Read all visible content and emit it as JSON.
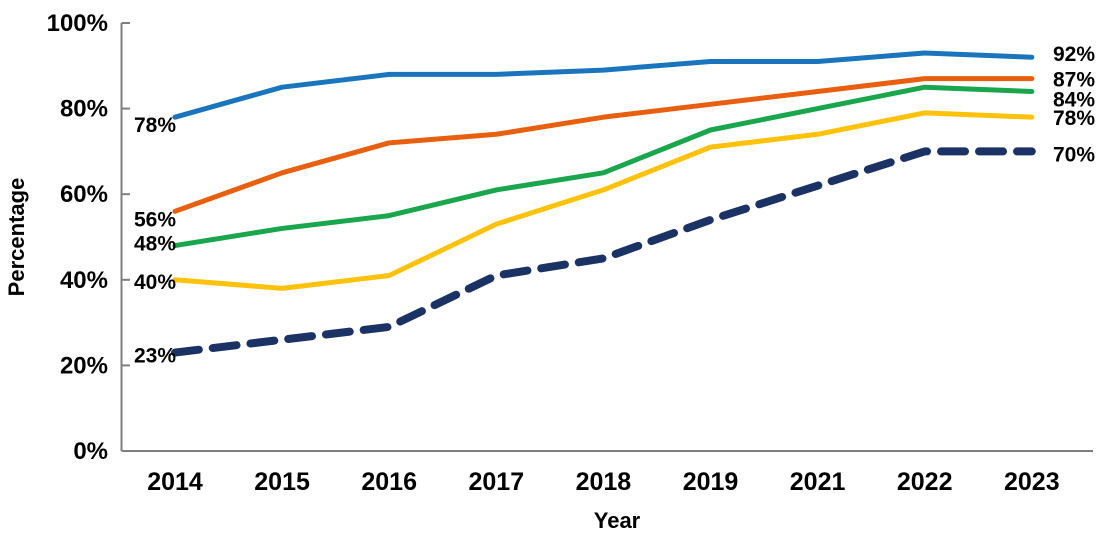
{
  "chart_data": {
    "type": "line",
    "title": "",
    "xlabel": "Year",
    "ylabel": "Percentage",
    "ylim": [
      0,
      100
    ],
    "grid": false,
    "legend": "none (series identified by start/end data labels)",
    "yticks": [
      "0%",
      "20%",
      "40%",
      "60%",
      "80%",
      "100%"
    ],
    "categories": [
      "2014",
      "2015",
      "2016",
      "2017",
      "2018",
      "2019",
      "2021",
      "2022",
      "2023"
    ],
    "axis_color": "#7F7F7F",
    "series": [
      {
        "name": "blue",
        "color": "#1B75BC",
        "line_style": "solid",
        "values": [
          78,
          85,
          88,
          88,
          89,
          91,
          91,
          93,
          92
        ],
        "start_label": "78%",
        "end_label": "92%"
      },
      {
        "name": "orange",
        "color": "#E8600F",
        "line_style": "solid",
        "values": [
          56,
          65,
          72,
          74,
          78,
          81,
          84,
          87,
          87
        ],
        "start_label": "56%",
        "end_label": "87%"
      },
      {
        "name": "green",
        "color": "#1AA64C",
        "line_style": "solid",
        "values": [
          48,
          52,
          55,
          61,
          65,
          75,
          80,
          85,
          84
        ],
        "start_label": "48%",
        "end_label": "84%"
      },
      {
        "name": "gold",
        "color": "#FFC20A",
        "line_style": "solid",
        "values": [
          40,
          38,
          41,
          53,
          61,
          71,
          74,
          79,
          78
        ],
        "start_label": "40%",
        "end_label": "78%"
      },
      {
        "name": "navy-dashed",
        "color": "#1B3264",
        "line_style": "dashed",
        "values": [
          23,
          26,
          29,
          41,
          45,
          54,
          62,
          70,
          70
        ],
        "start_label": "23%",
        "end_label": "70%"
      }
    ]
  }
}
